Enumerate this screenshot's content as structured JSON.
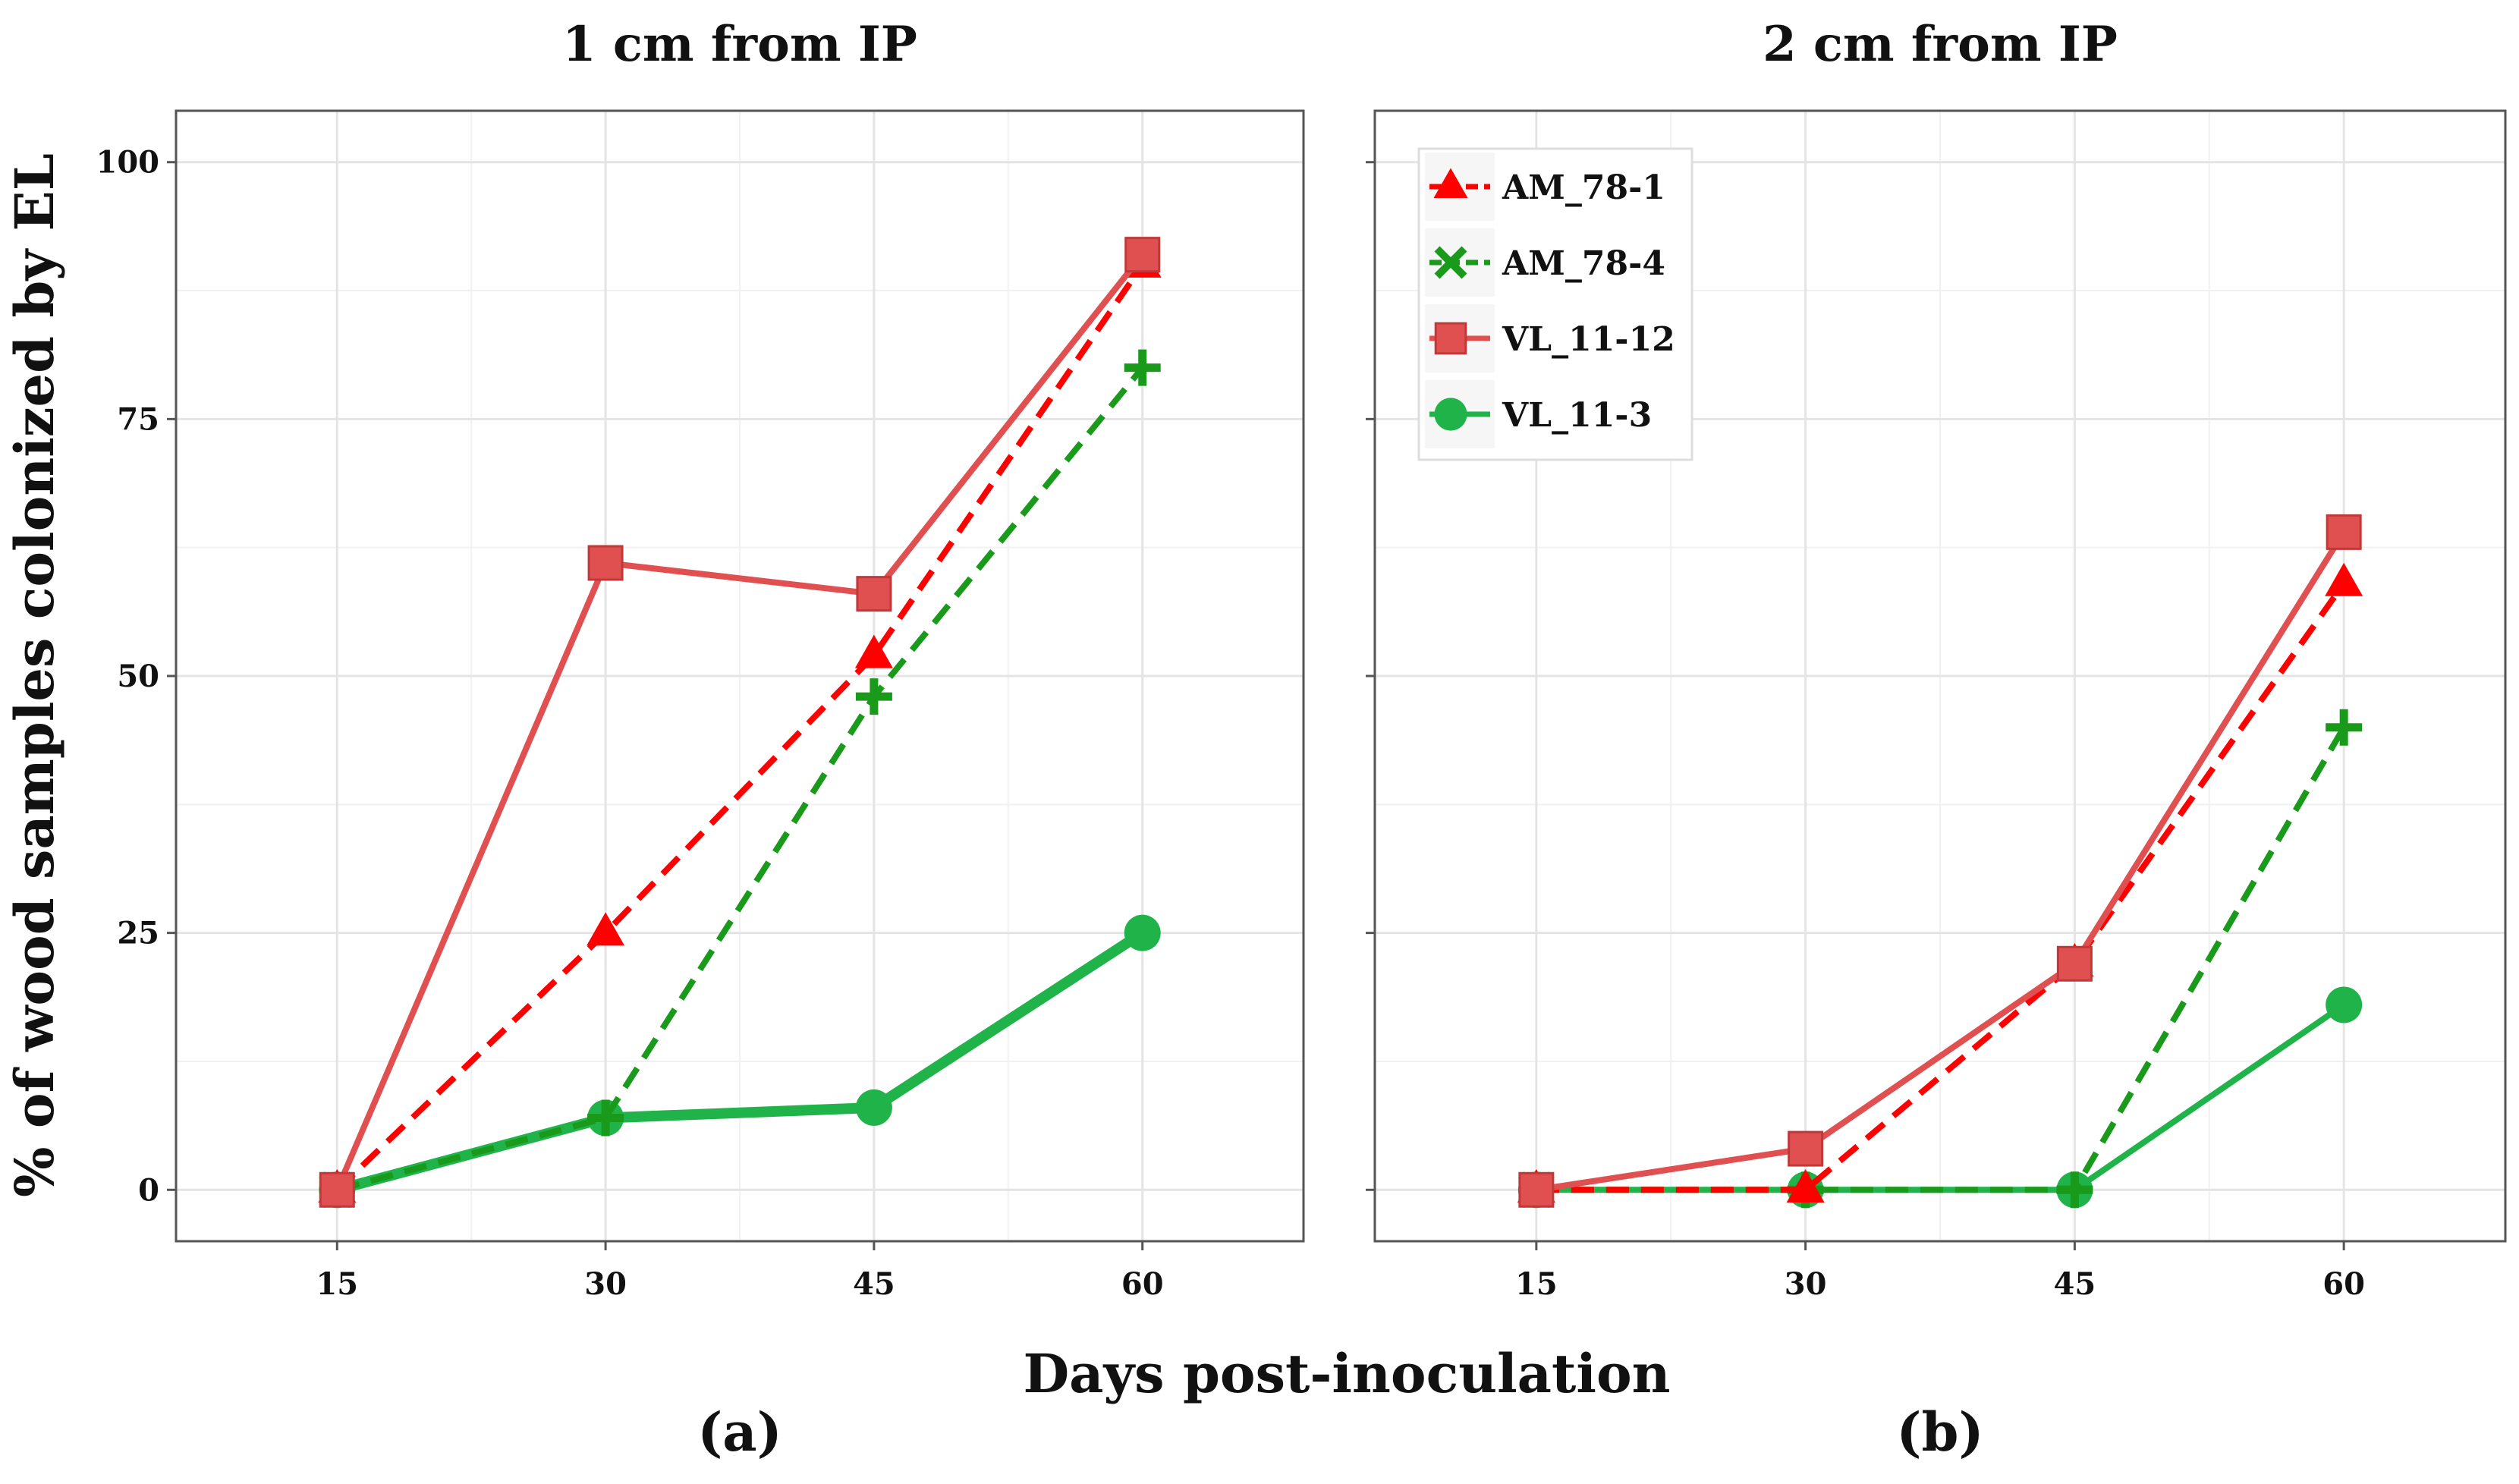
{
  "figure": {
    "x_axis_title": "Days post-inoculation",
    "y_axis_title": "% of wood samples colonized by EL"
  },
  "series_styles": [
    {
      "name": "AM_78-1",
      "color": "#ff0000",
      "line": "dashed",
      "marker": "triangle"
    },
    {
      "name": "AM_78-4",
      "color": "#1a9a1a",
      "line": "dashed",
      "marker": "cross"
    },
    {
      "name": "VL_11-12",
      "color": "#e05050",
      "line": "solid",
      "marker": "square"
    },
    {
      "name": "VL_11-3",
      "color": "#1fb34a",
      "line": "solid",
      "marker": "circle"
    }
  ],
  "legend": {
    "placement": "top-left of panel (b)",
    "items": [
      {
        "label": "AM_78-1"
      },
      {
        "label": "AM_78-4"
      },
      {
        "label": "VL_11-12"
      },
      {
        "label": "VL_11-3"
      }
    ]
  },
  "chart_data": [
    {
      "type": "line",
      "tag": "(a)",
      "title": "1 cm from IP",
      "xlabel": "Days post-inoculation",
      "ylabel": "% of wood samples colonized by EL",
      "x": [
        15,
        30,
        45,
        60
      ],
      "x_ticks": [
        "15",
        "30",
        "45",
        "60"
      ],
      "y_ticks": [
        "0",
        "25",
        "50",
        "75",
        "100"
      ],
      "xlim": [
        6,
        69
      ],
      "ylim": [
        -5,
        105
      ],
      "grid": true,
      "series": [
        {
          "name": "AM_78-1",
          "values": [
            0,
            25,
            52,
            90
          ]
        },
        {
          "name": "AM_78-4",
          "values": [
            0,
            7,
            48,
            80
          ]
        },
        {
          "name": "VL_11-12",
          "values": [
            0,
            61,
            58,
            91
          ]
        },
        {
          "name": "VL_11-3",
          "values": [
            0,
            7,
            8,
            25
          ]
        }
      ]
    },
    {
      "type": "line",
      "tag": "(b)",
      "title": "2 cm from IP",
      "xlabel": "Days post-inoculation",
      "ylabel": "% of wood samples colonized by EL",
      "x": [
        15,
        30,
        45,
        60
      ],
      "x_ticks": [
        "15",
        "30",
        "45",
        "60"
      ],
      "y_ticks": [
        "0",
        "25",
        "50",
        "75",
        "100"
      ],
      "xlim": [
        6,
        69
      ],
      "ylim": [
        -5,
        105
      ],
      "grid": true,
      "series": [
        {
          "name": "AM_78-1",
          "values": [
            0,
            0,
            22,
            59
          ]
        },
        {
          "name": "AM_78-4",
          "values": [
            0,
            0,
            0,
            45
          ]
        },
        {
          "name": "VL_11-12",
          "values": [
            0,
            4,
            22,
            64
          ]
        },
        {
          "name": "VL_11-3",
          "values": [
            0,
            0,
            0,
            18
          ]
        }
      ]
    }
  ]
}
